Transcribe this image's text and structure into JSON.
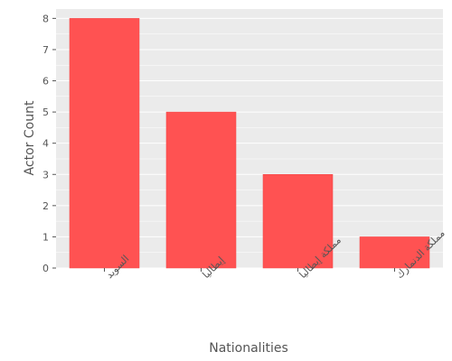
{
  "chart_data": {
    "type": "bar",
    "categories": [
      "السويد",
      "إيطاليا",
      "مملكة إيطاليا",
      "مملكة الدنمارك"
    ],
    "values": [
      8,
      5,
      3,
      1
    ],
    "title": "",
    "xlabel": "Nationalities",
    "ylabel": "Actor Count",
    "ylim": [
      0,
      8.3
    ],
    "yticks": [
      0,
      1,
      2,
      3,
      4,
      5,
      6,
      7,
      8
    ],
    "grid": true,
    "legend": "none",
    "colors": {
      "bar": "#ff5252",
      "plot_background": "#ebebeb",
      "grid": "#ffffff",
      "text": "#555555"
    }
  }
}
